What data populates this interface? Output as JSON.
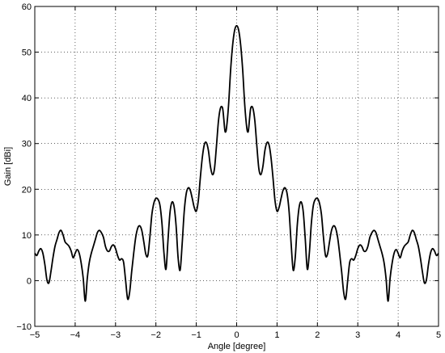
{
  "chart_data": {
    "type": "line",
    "title": "",
    "xlabel": "Angle [degree]",
    "ylabel": "Gain [dBi]",
    "xlim": [
      -5,
      5
    ],
    "ylim": [
      -10,
      60
    ],
    "xticks": [
      -5,
      -4,
      -3,
      -2,
      -1,
      0,
      1,
      2,
      3,
      4,
      5
    ],
    "yticks": [
      -10,
      0,
      10,
      20,
      30,
      40,
      50,
      60
    ],
    "xtick_labels": [
      "−5",
      "−4",
      "−3",
      "−2",
      "−1",
      "0",
      "1",
      "2",
      "3",
      "4",
      "5"
    ],
    "ytick_labels": [
      "−10",
      "0",
      "10",
      "20",
      "30",
      "40",
      "50",
      "60"
    ],
    "grid": true,
    "legend": "none",
    "line_color": "#000000",
    "series": [
      {
        "x": [
          0,
          0.05,
          0.1,
          0.15,
          0.2,
          0.25,
          0.28,
          0.3,
          0.32,
          0.35,
          0.4,
          0.45,
          0.5,
          0.55,
          0.6,
          0.65,
          0.7,
          0.75,
          0.8,
          0.85,
          0.9,
          0.95,
          1.0,
          1.05,
          1.1,
          1.15,
          1.2,
          1.25,
          1.3,
          1.35,
          1.4,
          1.45,
          1.5,
          1.55,
          1.6,
          1.65,
          1.7,
          1.75,
          1.8,
          1.85,
          1.9,
          1.95,
          2.0,
          2.05,
          2.1,
          2.15,
          2.2,
          2.25,
          2.3,
          2.35,
          2.4,
          2.45,
          2.5,
          2.55,
          2.6,
          2.65,
          2.7,
          2.75,
          2.8,
          2.85,
          2.9,
          2.95,
          3.0,
          3.05,
          3.1,
          3.15,
          3.2,
          3.25,
          3.3,
          3.35,
          3.4,
          3.45,
          3.5,
          3.55,
          3.6,
          3.65,
          3.7,
          3.75,
          3.8,
          3.85,
          3.9,
          3.95,
          4.0,
          4.05,
          4.1,
          4.15,
          4.2,
          4.25,
          4.3,
          4.35,
          4.4,
          4.45,
          4.5,
          4.55,
          4.6,
          4.65,
          4.7,
          4.75,
          4.8,
          4.85,
          4.9,
          4.95,
          5.0
        ],
        "y": [
          55.8,
          54.8,
          51.5,
          46.0,
          38.5,
          33.5,
          32.5,
          33.5,
          35.5,
          37.8,
          37.8,
          35.0,
          29.5,
          24.5,
          23.2,
          25.0,
          28.5,
          30.2,
          29.8,
          27.0,
          22.5,
          17.5,
          15.2,
          16.0,
          18.0,
          19.8,
          20.3,
          19.0,
          15.0,
          8.0,
          2.3,
          5.0,
          12.0,
          16.2,
          17.2,
          15.0,
          9.0,
          2.5,
          6.0,
          12.5,
          16.5,
          17.8,
          18.0,
          17.0,
          14.5,
          9.5,
          5.5,
          5.8,
          8.5,
          11.0,
          12.0,
          11.5,
          9.5,
          6.0,
          2.0,
          -2.5,
          -4.0,
          0.0,
          4.0,
          4.8,
          4.5,
          5.5,
          7.0,
          7.8,
          7.5,
          6.5,
          6.5,
          7.5,
          9.5,
          10.5,
          11.0,
          10.5,
          9.0,
          7.5,
          6.0,
          4.0,
          0.5,
          -4.5,
          0.5,
          3.8,
          6.0,
          6.8,
          6.0,
          5.0,
          6.5,
          7.5,
          8.0,
          8.5,
          10.0,
          11.0,
          10.5,
          9.0,
          7.5,
          5.0,
          2.0,
          -0.5,
          0.2,
          3.5,
          6.0,
          7.0,
          6.5,
          5.5,
          6.0
        ]
      }
    ]
  }
}
